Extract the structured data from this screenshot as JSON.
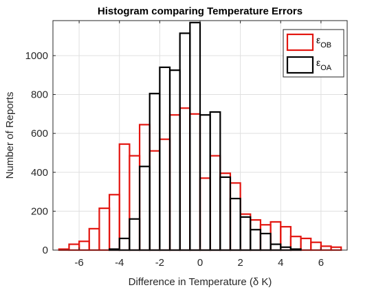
{
  "chart_data": {
    "type": "bar",
    "subtype": "histogram",
    "title": "Histogram comparing Temperature Errors",
    "xlabel": "Difference in Temperature (δ K)",
    "ylabel": "Number of Reports",
    "xlim": [
      -7.3,
      7.3
    ],
    "ylim": [
      0,
      1180
    ],
    "xticks": [
      -6,
      -4,
      -2,
      0,
      2,
      4,
      6
    ],
    "yticks": [
      0,
      200,
      400,
      600,
      800,
      1000
    ],
    "grid": true,
    "legend_position": "top-right",
    "series": [
      {
        "name": "εOB",
        "symbol": "ε",
        "subscript": "OB",
        "color": "#e3150f",
        "edges": [
          -7.0,
          -6.5,
          -6.0,
          -5.5,
          -5.0,
          -4.5,
          -4.0,
          -3.5,
          -3.0,
          -2.5,
          -2.0,
          -1.5,
          -1.0,
          -0.5,
          0.0,
          0.5,
          1.0,
          1.5,
          2.0,
          2.5,
          3.0,
          3.5,
          4.0,
          4.5,
          5.0,
          5.5,
          6.0,
          6.5,
          7.0
        ],
        "values": [
          5,
          30,
          45,
          110,
          215,
          285,
          545,
          485,
          645,
          510,
          570,
          695,
          730,
          700,
          370,
          485,
          395,
          345,
          185,
          155,
          130,
          145,
          120,
          70,
          60,
          40,
          20,
          15
        ]
      },
      {
        "name": "εOA",
        "symbol": "ε",
        "subscript": "OA",
        "color": "#000000",
        "edges": [
          -4.5,
          -4.0,
          -3.5,
          -3.0,
          -2.5,
          -2.0,
          -1.5,
          -1.0,
          -0.5,
          0.0,
          0.5,
          1.0,
          1.5,
          2.0,
          2.5,
          3.0,
          3.5,
          4.0,
          4.5,
          5.0
        ],
        "values": [
          5,
          60,
          160,
          430,
          805,
          940,
          925,
          1115,
          1170,
          695,
          710,
          375,
          265,
          170,
          105,
          85,
          30,
          15,
          5
        ]
      }
    ]
  }
}
